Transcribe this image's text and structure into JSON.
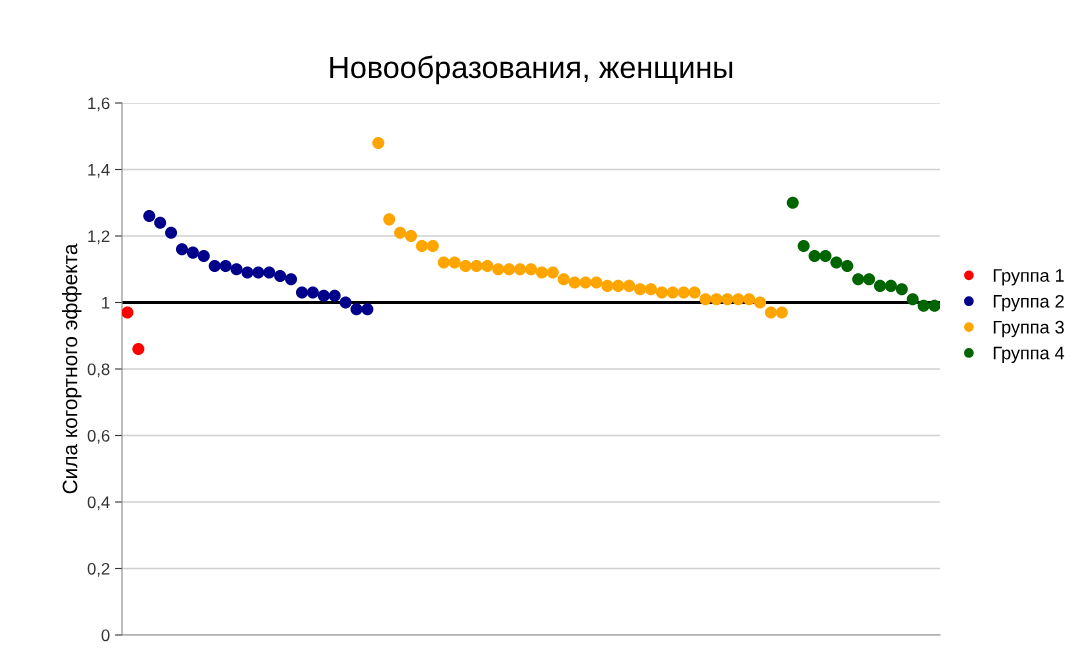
{
  "chart_data": {
    "type": "scatter",
    "title": "Новообразования, женщины",
    "ylabel": "Сила когортного эффекта",
    "categories": [
      null,
      null,
      null,
      null,
      null,
      null,
      null,
      null,
      null,
      null,
      null,
      null,
      null,
      null,
      null,
      null,
      null,
      null,
      null,
      null,
      null,
      null,
      null,
      null,
      null,
      null,
      null,
      null,
      null,
      null,
      null,
      null,
      null,
      null,
      null,
      null,
      null,
      null,
      null,
      null,
      null,
      null,
      null,
      null,
      null,
      null,
      null,
      null,
      null,
      null,
      null,
      null,
      null,
      null,
      null,
      null,
      null,
      null,
      null,
      null,
      null,
      null,
      null,
      null,
      null,
      null,
      null,
      null,
      null,
      null,
      null,
      null,
      null,
      null,
      null
    ],
    "ylim": [
      0,
      1.6
    ],
    "yticks": [
      {
        "value": 0,
        "label": "0"
      },
      {
        "value": 0.2,
        "label": "0,2"
      },
      {
        "value": 0.4,
        "label": "0,4"
      },
      {
        "value": 0.6,
        "label": "0,6"
      },
      {
        "value": 0.8,
        "label": "0,8"
      },
      {
        "value": 1,
        "label": "1"
      },
      {
        "value": 1.2,
        "label": "1,2"
      },
      {
        "value": 1.4,
        "label": "1,4"
      },
      {
        "value": 1.6,
        "label": "1,6"
      }
    ],
    "tick_labels": "y",
    "grid": "y",
    "legend": "right",
    "marker": "circle",
    "ref_lines": [
      {
        "axis": "y",
        "value": 1,
        "label": null,
        "color": "#000000"
      }
    ],
    "series": [
      {
        "name": "Группа 1",
        "color": "#ff0000",
        "values": [
          0.97,
          0.86,
          null,
          null,
          null,
          null,
          null,
          null,
          null,
          null,
          null,
          null,
          null,
          null,
          null,
          null,
          null,
          null,
          null,
          null,
          null,
          null,
          null,
          null,
          null,
          null,
          null,
          null,
          null,
          null,
          null,
          null,
          null,
          null,
          null,
          null,
          null,
          null,
          null,
          null,
          null,
          null,
          null,
          null,
          null,
          null,
          null,
          null,
          null,
          null,
          null,
          null,
          null,
          null,
          null,
          null,
          null,
          null,
          null,
          null,
          null,
          null,
          null,
          null,
          null,
          null,
          null,
          null,
          null,
          null,
          null,
          null,
          null,
          null,
          null
        ]
      },
      {
        "name": "Группа 2",
        "color": "#00008b",
        "values": [
          null,
          null,
          1.26,
          1.24,
          1.21,
          1.16,
          1.15,
          1.14,
          1.11,
          1.11,
          1.1,
          1.09,
          1.09,
          1.09,
          1.08,
          1.07,
          1.03,
          1.03,
          1.02,
          1.02,
          1.0,
          0.98,
          0.98,
          null,
          null,
          null,
          null,
          null,
          null,
          null,
          null,
          null,
          null,
          null,
          null,
          null,
          null,
          null,
          null,
          null,
          null,
          null,
          null,
          null,
          null,
          null,
          null,
          null,
          null,
          null,
          null,
          null,
          null,
          null,
          null,
          null,
          null,
          null,
          null,
          null,
          null,
          null,
          null,
          null,
          null,
          null,
          null,
          null,
          null,
          null,
          null,
          null,
          null,
          null,
          null
        ]
      },
      {
        "name": "Группа 3",
        "color": "#ffa500",
        "values": [
          null,
          null,
          null,
          null,
          null,
          null,
          null,
          null,
          null,
          null,
          null,
          null,
          null,
          null,
          null,
          null,
          null,
          null,
          null,
          null,
          null,
          null,
          null,
          1.48,
          1.25,
          1.21,
          1.2,
          1.17,
          1.17,
          1.12,
          1.12,
          1.11,
          1.11,
          1.11,
          1.1,
          1.1,
          1.1,
          1.1,
          1.09,
          1.09,
          1.07,
          1.06,
          1.06,
          1.06,
          1.05,
          1.05,
          1.05,
          1.04,
          1.04,
          1.03,
          1.03,
          1.03,
          1.03,
          1.01,
          1.01,
          1.01,
          1.01,
          1.01,
          1.0,
          0.97,
          0.97,
          null,
          null,
          null,
          null,
          null,
          null,
          null,
          null,
          null,
          null,
          null,
          null,
          null,
          null
        ]
      },
      {
        "name": "Группа 4",
        "color": "#006400",
        "values": [
          null,
          null,
          null,
          null,
          null,
          null,
          null,
          null,
          null,
          null,
          null,
          null,
          null,
          null,
          null,
          null,
          null,
          null,
          null,
          null,
          null,
          null,
          null,
          null,
          null,
          null,
          null,
          null,
          null,
          null,
          null,
          null,
          null,
          null,
          null,
          null,
          null,
          null,
          null,
          null,
          null,
          null,
          null,
          null,
          null,
          null,
          null,
          null,
          null,
          null,
          null,
          null,
          null,
          null,
          null,
          null,
          null,
          null,
          null,
          null,
          null,
          1.3,
          1.17,
          1.14,
          1.14,
          1.12,
          1.11,
          1.07,
          1.07,
          1.05,
          1.05,
          1.04,
          1.01,
          0.99,
          0.99
        ]
      }
    ]
  }
}
